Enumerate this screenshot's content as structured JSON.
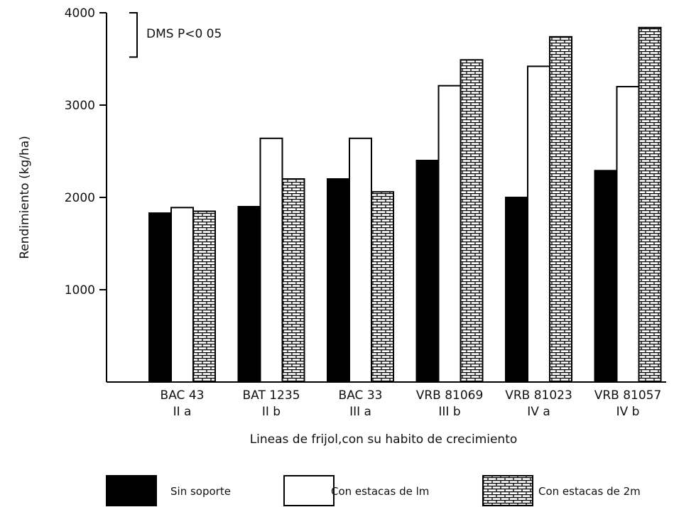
{
  "chart_data": {
    "type": "bar",
    "xlabel": "Lineas de frijol,con su habito de crecimiento",
    "ylabel": "Rendimiento (kg/ha)",
    "ylim": [
      0,
      4000
    ],
    "yticks": [
      "1000",
      "2000",
      "3000",
      "4000"
    ],
    "ytick_values": [
      1000,
      2000,
      3000,
      4000
    ],
    "grid": false,
    "legend_position": "bottom",
    "categories": [
      {
        "name": "BAC 43",
        "habit": "II a"
      },
      {
        "name": "BAT 1235",
        "habit": "II b"
      },
      {
        "name": "BAC 33",
        "habit": "III a"
      },
      {
        "name": "VRB 81069",
        "habit": "III b"
      },
      {
        "name": "VRB 81023",
        "habit": "IV a"
      },
      {
        "name": "VRB 81057",
        "habit": "IV b"
      }
    ],
    "series": [
      {
        "name": "Sin soporte",
        "fill": "solid",
        "color": "#000000",
        "values": [
          1830,
          1900,
          2200,
          2400,
          2000,
          2290
        ]
      },
      {
        "name": "Con estacas de lm",
        "fill": "white",
        "color": "#ffffff",
        "values": [
          1890,
          2640,
          2640,
          3210,
          3420,
          3200
        ]
      },
      {
        "name": "Con estacas de 2m",
        "fill": "brick",
        "color": "#000000",
        "values": [
          1850,
          2200,
          2060,
          3490,
          3740,
          3840
        ]
      }
    ],
    "annotation": {
      "label": "DMS  P<0 05",
      "range": [
        3520,
        4000
      ]
    }
  }
}
